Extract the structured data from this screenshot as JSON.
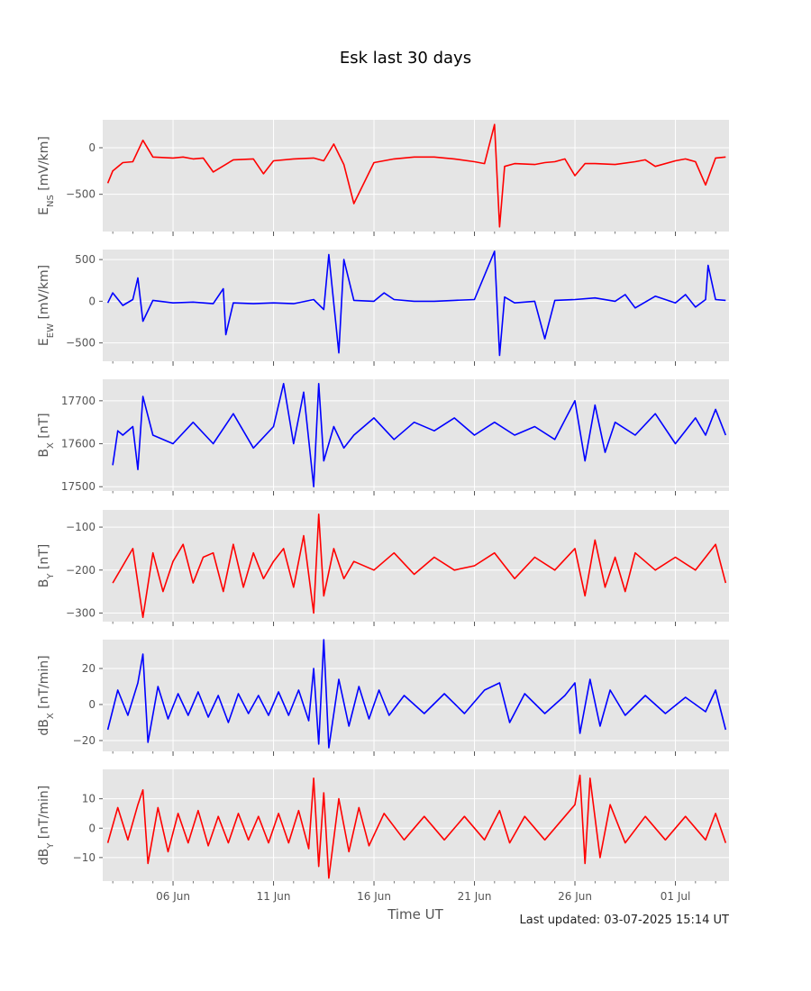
{
  "title": "Esk last 30 days",
  "xlabel": "Time UT",
  "footer": "Last updated: 03-07-2025 15:14 UT",
  "chart_data": {
    "type": "line",
    "xlim": [
      "2025-06-02T12:00",
      "2025-07-03T16:00"
    ],
    "xticks": [
      {
        "date": "2025-06-06",
        "label": "06 Jun"
      },
      {
        "date": "2025-06-11",
        "label": "11 Jun"
      },
      {
        "date": "2025-06-16",
        "label": "16 Jun"
      },
      {
        "date": "2025-06-21",
        "label": "21 Jun"
      },
      {
        "date": "2025-06-26",
        "label": "26 Jun"
      },
      {
        "date": "2025-07-01",
        "label": "01 Jul"
      }
    ],
    "grid": true,
    "panels": [
      {
        "ylabel_main": "E",
        "ylabel_sub": "NS",
        "ylabel_unit": " [mV/km]",
        "color": "#ff0000",
        "ylim": [
          -900,
          300
        ],
        "yticks": [
          {
            "v": 0,
            "label": "0"
          },
          {
            "v": -500,
            "label": "−500"
          }
        ],
        "x": [
          "2025-06-02T18:00",
          "2025-06-03T00:00",
          "2025-06-03T12:00",
          "2025-06-04T00:00",
          "2025-06-04T12:00",
          "2025-06-05T00:00",
          "2025-06-06T00:00",
          "2025-06-06T12:00",
          "2025-06-07T00:00",
          "2025-06-07T12:00",
          "2025-06-08T00:00",
          "2025-06-09T00:00",
          "2025-06-10T00:00",
          "2025-06-10T12:00",
          "2025-06-11T00:00",
          "2025-06-12T00:00",
          "2025-06-13T00:00",
          "2025-06-13T12:00",
          "2025-06-14T00:00",
          "2025-06-14T12:00",
          "2025-06-15T00:00",
          "2025-06-16T00:00",
          "2025-06-17T00:00",
          "2025-06-18T00:00",
          "2025-06-19T00:00",
          "2025-06-20T00:00",
          "2025-06-21T00:00",
          "2025-06-21T12:00",
          "2025-06-22T00:00",
          "2025-06-22T06:00",
          "2025-06-22T12:00",
          "2025-06-23T00:00",
          "2025-06-24T00:00",
          "2025-06-24T12:00",
          "2025-06-25T00:00",
          "2025-06-25T12:00",
          "2025-06-26T00:00",
          "2025-06-26T12:00",
          "2025-06-27T00:00",
          "2025-06-28T00:00",
          "2025-06-29T00:00",
          "2025-06-29T12:00",
          "2025-06-30T00:00",
          "2025-07-01T00:00",
          "2025-07-01T12:00",
          "2025-07-02T00:00",
          "2025-07-02T12:00",
          "2025-07-03T00:00",
          "2025-07-03T12:00"
        ],
        "y": [
          -380,
          -250,
          -160,
          -150,
          80,
          -100,
          -110,
          -100,
          -120,
          -110,
          -260,
          -130,
          -120,
          -280,
          -140,
          -120,
          -110,
          -140,
          40,
          -180,
          -600,
          -160,
          -120,
          -100,
          -100,
          -120,
          -150,
          -170,
          250,
          -850,
          -200,
          -170,
          -180,
          -160,
          -150,
          -120,
          -300,
          -170,
          -170,
          -180,
          -150,
          -130,
          -200,
          -140,
          -120,
          -150,
          -400,
          -110,
          -100
        ]
      },
      {
        "ylabel_main": "E",
        "ylabel_sub": "EW",
        "ylabel_unit": " [mV/km]",
        "color": "#0000ff",
        "ylim": [
          -720,
          620
        ],
        "yticks": [
          {
            "v": 500,
            "label": "500"
          },
          {
            "v": 0,
            "label": "0"
          },
          {
            "v": -500,
            "label": "−500"
          }
        ],
        "x": [
          "2025-06-02T18:00",
          "2025-06-03T00:00",
          "2025-06-03T12:00",
          "2025-06-04T00:00",
          "2025-06-04T06:00",
          "2025-06-04T12:00",
          "2025-06-05T00:00",
          "2025-06-06T00:00",
          "2025-06-07T00:00",
          "2025-06-08T00:00",
          "2025-06-08T12:00",
          "2025-06-08T15:00",
          "2025-06-09T00:00",
          "2025-06-10T00:00",
          "2025-06-11T00:00",
          "2025-06-12T00:00",
          "2025-06-13T00:00",
          "2025-06-13T12:00",
          "2025-06-13T18:00",
          "2025-06-14T06:00",
          "2025-06-14T12:00",
          "2025-06-15T00:00",
          "2025-06-16T00:00",
          "2025-06-16T12:00",
          "2025-06-17T00:00",
          "2025-06-18T00:00",
          "2025-06-19T00:00",
          "2025-06-20T00:00",
          "2025-06-21T00:00",
          "2025-06-22T00:00",
          "2025-06-22T06:00",
          "2025-06-22T12:00",
          "2025-06-23T00:00",
          "2025-06-24T00:00",
          "2025-06-24T12:00",
          "2025-06-25T00:00",
          "2025-06-26T00:00",
          "2025-06-27T00:00",
          "2025-06-28T00:00",
          "2025-06-28T12:00",
          "2025-06-29T00:00",
          "2025-06-30T00:00",
          "2025-07-01T00:00",
          "2025-07-01T12:00",
          "2025-07-02T00:00",
          "2025-07-02T12:00",
          "2025-07-02T15:00",
          "2025-07-03T00:00",
          "2025-07-03T12:00"
        ],
        "y": [
          -20,
          100,
          -50,
          20,
          280,
          -240,
          10,
          -20,
          -10,
          -30,
          150,
          -400,
          -20,
          -30,
          -20,
          -30,
          20,
          -100,
          560,
          -620,
          500,
          10,
          0,
          100,
          20,
          0,
          0,
          10,
          20,
          600,
          -650,
          50,
          -20,
          0,
          -450,
          10,
          20,
          40,
          0,
          80,
          -80,
          60,
          -20,
          80,
          -70,
          20,
          430,
          20,
          10
        ]
      },
      {
        "ylabel_main": "B",
        "ylabel_sub": "X",
        "ylabel_unit": " [nT]",
        "color": "#0000ff",
        "ylim": [
          17490,
          17750
        ],
        "yticks": [
          {
            "v": 17700,
            "label": "17700"
          },
          {
            "v": 17600,
            "label": "17600"
          },
          {
            "v": 17500,
            "label": "17500"
          }
        ],
        "x": [
          "2025-06-03T00:00",
          "2025-06-03T06:00",
          "2025-06-03T12:00",
          "2025-06-04T00:00",
          "2025-06-04T06:00",
          "2025-06-04T12:00",
          "2025-06-05T00:00",
          "2025-06-06T00:00",
          "2025-06-07T00:00",
          "2025-06-08T00:00",
          "2025-06-09T00:00",
          "2025-06-10T00:00",
          "2025-06-11T00:00",
          "2025-06-11T12:00",
          "2025-06-12T00:00",
          "2025-06-12T12:00",
          "2025-06-13T00:00",
          "2025-06-13T06:00",
          "2025-06-13T12:00",
          "2025-06-14T00:00",
          "2025-06-14T12:00",
          "2025-06-15T00:00",
          "2025-06-16T00:00",
          "2025-06-17T00:00",
          "2025-06-18T00:00",
          "2025-06-19T00:00",
          "2025-06-20T00:00",
          "2025-06-21T00:00",
          "2025-06-22T00:00",
          "2025-06-23T00:00",
          "2025-06-24T00:00",
          "2025-06-25T00:00",
          "2025-06-26T00:00",
          "2025-06-26T12:00",
          "2025-06-27T00:00",
          "2025-06-27T12:00",
          "2025-06-28T00:00",
          "2025-06-29T00:00",
          "2025-06-30T00:00",
          "2025-07-01T00:00",
          "2025-07-02T00:00",
          "2025-07-02T12:00",
          "2025-07-03T00:00",
          "2025-07-03T12:00"
        ],
        "y": [
          17550,
          17630,
          17620,
          17640,
          17540,
          17710,
          17620,
          17600,
          17650,
          17600,
          17670,
          17590,
          17640,
          17740,
          17600,
          17720,
          17500,
          17740,
          17560,
          17640,
          17590,
          17620,
          17660,
          17610,
          17650,
          17630,
          17660,
          17620,
          17650,
          17620,
          17640,
          17610,
          17700,
          17560,
          17690,
          17580,
          17650,
          17620,
          17670,
          17600,
          17660,
          17620,
          17680,
          17620
        ]
      },
      {
        "ylabel_main": "B",
        "ylabel_sub": "Y",
        "ylabel_unit": " [nT]",
        "color": "#ff0000",
        "ylim": [
          -320,
          -60
        ],
        "yticks": [
          {
            "v": -100,
            "label": "−100"
          },
          {
            "v": -200,
            "label": "−200"
          },
          {
            "v": -300,
            "label": "−300"
          }
        ],
        "x": [
          "2025-06-03T00:00",
          "2025-06-03T12:00",
          "2025-06-04T00:00",
          "2025-06-04T12:00",
          "2025-06-05T00:00",
          "2025-06-05T12:00",
          "2025-06-06T00:00",
          "2025-06-06T12:00",
          "2025-06-07T00:00",
          "2025-06-07T12:00",
          "2025-06-08T00:00",
          "2025-06-08T12:00",
          "2025-06-09T00:00",
          "2025-06-09T12:00",
          "2025-06-10T00:00",
          "2025-06-10T12:00",
          "2025-06-11T00:00",
          "2025-06-11T12:00",
          "2025-06-12T00:00",
          "2025-06-12T12:00",
          "2025-06-13T00:00",
          "2025-06-13T06:00",
          "2025-06-13T12:00",
          "2025-06-14T00:00",
          "2025-06-14T12:00",
          "2025-06-15T00:00",
          "2025-06-16T00:00",
          "2025-06-17T00:00",
          "2025-06-18T00:00",
          "2025-06-19T00:00",
          "2025-06-20T00:00",
          "2025-06-21T00:00",
          "2025-06-22T00:00",
          "2025-06-23T00:00",
          "2025-06-24T00:00",
          "2025-06-25T00:00",
          "2025-06-26T00:00",
          "2025-06-26T12:00",
          "2025-06-27T00:00",
          "2025-06-27T12:00",
          "2025-06-28T00:00",
          "2025-06-28T12:00",
          "2025-06-29T00:00",
          "2025-06-30T00:00",
          "2025-07-01T00:00",
          "2025-07-02T00:00",
          "2025-07-02T12:00",
          "2025-07-03T00:00",
          "2025-07-03T12:00"
        ],
        "y": [
          -230,
          -190,
          -150,
          -310,
          -160,
          -250,
          -180,
          -140,
          -230,
          -170,
          -160,
          -250,
          -140,
          -240,
          -160,
          -220,
          -180,
          -150,
          -240,
          -120,
          -300,
          -70,
          -260,
          -150,
          -220,
          -180,
          -200,
          -160,
          -210,
          -170,
          -200,
          -190,
          -160,
          -220,
          -170,
          -200,
          -150,
          -260,
          -130,
          -240,
          -170,
          -250,
          -160,
          -200,
          -170,
          -200,
          -170,
          -140,
          -230
        ]
      },
      {
        "ylabel_main": "dB",
        "ylabel_sub": "X",
        "ylabel_unit": " [nT/min]",
        "color": "#0000ff",
        "ylim": [
          -26,
          36
        ],
        "yticks": [
          {
            "v": 20,
            "label": "20"
          },
          {
            "v": 0,
            "label": "0"
          },
          {
            "v": -20,
            "label": "−20"
          }
        ],
        "x": [
          "2025-06-02T18:00",
          "2025-06-03T06:00",
          "2025-06-03T18:00",
          "2025-06-04T06:00",
          "2025-06-04T12:00",
          "2025-06-04T18:00",
          "2025-06-05T06:00",
          "2025-06-05T18:00",
          "2025-06-06T06:00",
          "2025-06-06T18:00",
          "2025-06-07T06:00",
          "2025-06-07T18:00",
          "2025-06-08T06:00",
          "2025-06-08T18:00",
          "2025-06-09T06:00",
          "2025-06-09T18:00",
          "2025-06-10T06:00",
          "2025-06-10T18:00",
          "2025-06-11T06:00",
          "2025-06-11T18:00",
          "2025-06-12T06:00",
          "2025-06-12T18:00",
          "2025-06-13T00:00",
          "2025-06-13T06:00",
          "2025-06-13T12:00",
          "2025-06-13T18:00",
          "2025-06-14T06:00",
          "2025-06-14T18:00",
          "2025-06-15T06:00",
          "2025-06-15T18:00",
          "2025-06-16T06:00",
          "2025-06-16T18:00",
          "2025-06-17T12:00",
          "2025-06-18T12:00",
          "2025-06-19T12:00",
          "2025-06-20T12:00",
          "2025-06-21T12:00",
          "2025-06-22T06:00",
          "2025-06-22T18:00",
          "2025-06-23T12:00",
          "2025-06-24T12:00",
          "2025-06-25T12:00",
          "2025-06-26T00:00",
          "2025-06-26T06:00",
          "2025-06-26T18:00",
          "2025-06-27T06:00",
          "2025-06-27T18:00",
          "2025-06-28T12:00",
          "2025-06-29T12:00",
          "2025-06-30T12:00",
          "2025-07-01T12:00",
          "2025-07-02T12:00",
          "2025-07-03T00:00",
          "2025-07-03T12:00"
        ],
        "y": [
          -14,
          8,
          -6,
          12,
          28,
          -21,
          10,
          -8,
          6,
          -6,
          7,
          -7,
          5,
          -10,
          6,
          -5,
          5,
          -6,
          7,
          -6,
          8,
          -9,
          20,
          -22,
          36,
          -24,
          14,
          -12,
          10,
          -8,
          8,
          -6,
          5,
          -5,
          6,
          -5,
          8,
          12,
          -10,
          6,
          -5,
          5,
          12,
          -16,
          14,
          -12,
          8,
          -6,
          5,
          -5,
          4,
          -4,
          8,
          -14
        ]
      },
      {
        "ylabel_main": "dB",
        "ylabel_sub": "Y",
        "ylabel_unit": " [nT/min]",
        "color": "#ff0000",
        "ylim": [
          -18,
          20
        ],
        "yticks": [
          {
            "v": 10,
            "label": "10"
          },
          {
            "v": 0,
            "label": "0"
          },
          {
            "v": -10,
            "label": "−10"
          }
        ],
        "x": [
          "2025-06-02T18:00",
          "2025-06-03T06:00",
          "2025-06-03T18:00",
          "2025-06-04T06:00",
          "2025-06-04T12:00",
          "2025-06-04T18:00",
          "2025-06-05T06:00",
          "2025-06-05T18:00",
          "2025-06-06T06:00",
          "2025-06-06T18:00",
          "2025-06-07T06:00",
          "2025-06-07T18:00",
          "2025-06-08T06:00",
          "2025-06-08T18:00",
          "2025-06-09T06:00",
          "2025-06-09T18:00",
          "2025-06-10T06:00",
          "2025-06-10T18:00",
          "2025-06-11T06:00",
          "2025-06-11T18:00",
          "2025-06-12T06:00",
          "2025-06-12T18:00",
          "2025-06-13T00:00",
          "2025-06-13T06:00",
          "2025-06-13T12:00",
          "2025-06-13T18:00",
          "2025-06-14T06:00",
          "2025-06-14T18:00",
          "2025-06-15T06:00",
          "2025-06-15T18:00",
          "2025-06-16T12:00",
          "2025-06-17T12:00",
          "2025-06-18T12:00",
          "2025-06-19T12:00",
          "2025-06-20T12:00",
          "2025-06-21T12:00",
          "2025-06-22T06:00",
          "2025-06-22T18:00",
          "2025-06-23T12:00",
          "2025-06-24T12:00",
          "2025-06-25T12:00",
          "2025-06-26T00:00",
          "2025-06-26T06:00",
          "2025-06-26T12:00",
          "2025-06-26T18:00",
          "2025-06-27T06:00",
          "2025-06-27T18:00",
          "2025-06-28T12:00",
          "2025-06-29T12:00",
          "2025-06-30T12:00",
          "2025-07-01T12:00",
          "2025-07-02T12:00",
          "2025-07-03T00:00",
          "2025-07-03T12:00"
        ],
        "y": [
          -5,
          7,
          -4,
          8,
          13,
          -12,
          7,
          -8,
          5,
          -5,
          6,
          -6,
          4,
          -5,
          5,
          -4,
          4,
          -5,
          5,
          -5,
          6,
          -7,
          17,
          -13,
          12,
          -17,
          10,
          -8,
          7,
          -6,
          5,
          -4,
          4,
          -4,
          4,
          -4,
          6,
          -5,
          4,
          -4,
          4,
          8,
          18,
          -12,
          17,
          -10,
          8,
          -5,
          4,
          -4,
          4,
          -4,
          5,
          -5
        ]
      }
    ]
  }
}
